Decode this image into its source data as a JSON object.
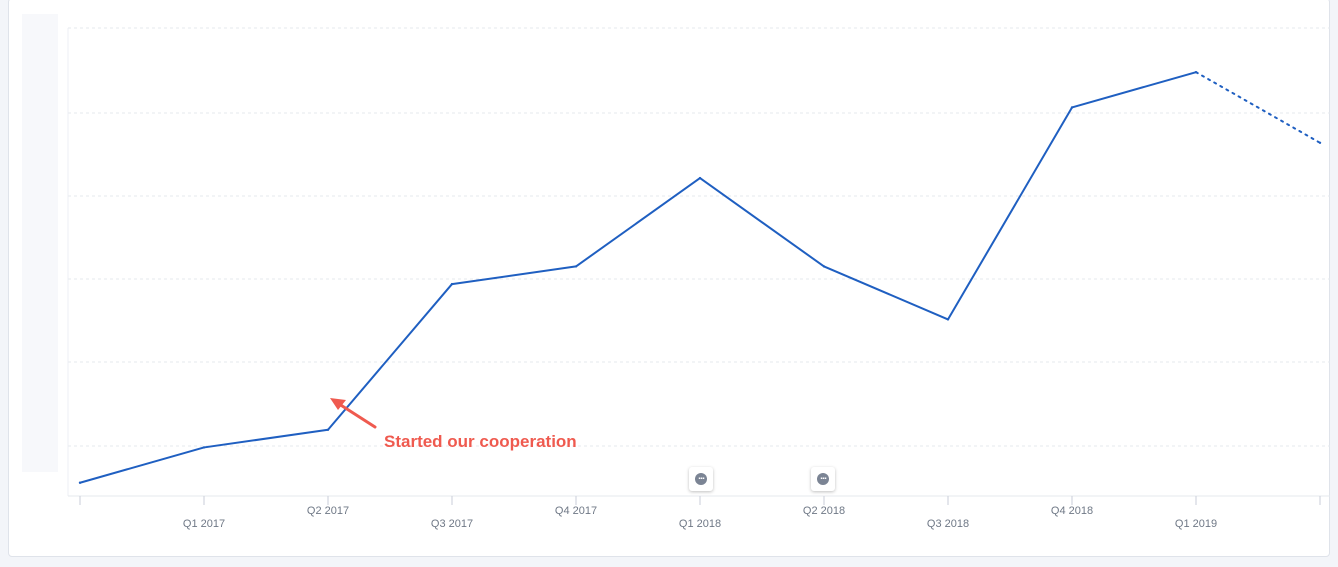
{
  "chart_data": {
    "type": "line",
    "x": [
      "",
      "Q1 2017",
      "Q2 2017",
      "Q3 2017",
      "Q4 2017",
      "Q1 2018",
      "Q2 2018",
      "Q3 2018",
      "Q4 2018",
      "Q1 2019",
      ""
    ],
    "series": [
      {
        "values": [
          0,
          4,
          6,
          22.5,
          24.5,
          34.5,
          24.5,
          18.5,
          42.5,
          46.5,
          38.5
        ],
        "projected_from_index": 9,
        "color": "#1f5fc1"
      }
    ],
    "ylim": [
      -1.5,
      51.5
    ],
    "grid": true,
    "annotations": [
      {
        "text": "Started our cooperation",
        "at": "Q2 2017",
        "color": "#ef5a4f"
      }
    ],
    "comment_markers": [
      {
        "at": "Q1 2018",
        "icon": "comment-icon"
      },
      {
        "at": "Q2 2018",
        "icon": "comment-icon"
      }
    ]
  },
  "colors": {
    "line": "#1f5fc1",
    "grid": "#e6e8ee",
    "annotation": "#ef5a4f",
    "tick_text": "#6f7886"
  }
}
